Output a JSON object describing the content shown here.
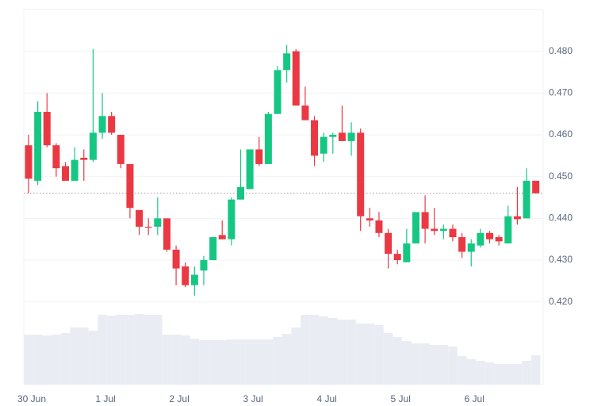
{
  "chart_data": {
    "type": "candlestick",
    "categories": [
      "30 Jun",
      null,
      null,
      null,
      null,
      null,
      null,
      null,
      "1 Jul",
      null,
      null,
      null,
      null,
      null,
      null,
      null,
      "2 Jul",
      null,
      null,
      null,
      null,
      null,
      null,
      null,
      "3 Jul",
      null,
      null,
      null,
      null,
      null,
      null,
      null,
      "4 Jul",
      null,
      null,
      null,
      null,
      null,
      null,
      null,
      "5 Jul",
      null,
      null,
      null,
      null,
      null,
      null,
      null,
      "6 Jul",
      null,
      null,
      null,
      null,
      null,
      null,
      null
    ],
    "open": [
      0.4575,
      0.449,
      0.4655,
      0.4575,
      0.4525,
      0.449,
      0.4545,
      0.454,
      0.4605,
      0.4645,
      0.46,
      0.453,
      0.442,
      0.438,
      0.438,
      0.44,
      0.4325,
      0.4285,
      0.424,
      0.4275,
      0.43,
      0.436,
      0.435,
      0.4445,
      0.447,
      0.4565,
      0.453,
      0.465,
      0.4755,
      0.48,
      0.467,
      0.4635,
      0.4555,
      0.4595,
      0.4605,
      0.4585,
      0.4605,
      0.44,
      0.4395,
      0.4365,
      0.4315,
      0.4295,
      0.434,
      0.4415,
      0.4375,
      0.437,
      0.4375,
      0.4355,
      0.432,
      0.4335,
      0.4365,
      0.4355,
      0.434,
      0.4405,
      0.44,
      0.449
    ],
    "high": [
      0.46,
      0.468,
      0.47,
      0.458,
      0.4535,
      0.457,
      0.4565,
      0.4805,
      0.47,
      0.4655,
      0.46,
      0.453,
      0.442,
      0.44,
      0.445,
      0.44,
      0.4335,
      0.4295,
      0.4285,
      0.431,
      0.4355,
      0.4395,
      0.445,
      0.4565,
      0.4565,
      0.4595,
      0.4655,
      0.4765,
      0.4815,
      0.4805,
      0.4715,
      0.4645,
      0.4605,
      0.4605,
      0.467,
      0.463,
      0.4615,
      0.4425,
      0.4415,
      0.4375,
      0.4325,
      0.4375,
      0.4415,
      0.4455,
      0.4425,
      0.4385,
      0.4385,
      0.4365,
      0.435,
      0.4375,
      0.437,
      0.436,
      0.443,
      0.4475,
      0.452,
      0.449
    ],
    "low": [
      0.446,
      0.448,
      0.457,
      0.45,
      0.449,
      0.449,
      0.449,
      0.4535,
      0.459,
      0.46,
      0.452,
      0.44,
      0.436,
      0.436,
      0.436,
      0.432,
      0.424,
      0.4235,
      0.4215,
      0.424,
      0.43,
      0.435,
      0.4335,
      0.4445,
      0.447,
      0.4525,
      0.453,
      0.465,
      0.4725,
      0.467,
      0.4635,
      0.4525,
      0.4535,
      0.4555,
      0.4585,
      0.455,
      0.437,
      0.438,
      0.4355,
      0.428,
      0.429,
      0.4295,
      0.434,
      0.434,
      0.436,
      0.435,
      0.4345,
      0.4305,
      0.4285,
      0.433,
      0.434,
      0.4335,
      0.434,
      0.4385,
      0.44,
      0.446
    ],
    "close": [
      0.4495,
      0.4655,
      0.4575,
      0.452,
      0.449,
      0.454,
      0.454,
      0.4605,
      0.4645,
      0.4605,
      0.453,
      0.4425,
      0.438,
      0.4378,
      0.44,
      0.4325,
      0.428,
      0.424,
      0.4265,
      0.43,
      0.4355,
      0.435,
      0.4445,
      0.4475,
      0.4565,
      0.453,
      0.465,
      0.4755,
      0.4795,
      0.467,
      0.4635,
      0.455,
      0.4595,
      0.46,
      0.4585,
      0.4605,
      0.4405,
      0.4395,
      0.4365,
      0.4315,
      0.43,
      0.434,
      0.4415,
      0.4375,
      0.437,
      0.4375,
      0.4355,
      0.432,
      0.434,
      0.4365,
      0.435,
      0.4345,
      0.4405,
      0.4398,
      0.449,
      0.446
    ],
    "volume": [
      63,
      63,
      62,
      63,
      65,
      72,
      72,
      68,
      88,
      87,
      88,
      88,
      89,
      88,
      88,
      63,
      63,
      62,
      58,
      56,
      56,
      56,
      57,
      57,
      57,
      57,
      57,
      60,
      64,
      72,
      88,
      88,
      86,
      84,
      82,
      82,
      77,
      77,
      75,
      65,
      60,
      55,
      52,
      52,
      50,
      50,
      48,
      36,
      32,
      30,
      28,
      26,
      26,
      26,
      30,
      37
    ],
    "last_price": 0.446,
    "up_color": "#16c784",
    "down_color": "#ea3943",
    "volume_color": "#e9edf3",
    "ylim": [
      0.4002,
      0.49
    ],
    "yticks": [
      {
        "value": 0.42,
        "label": "0.420"
      },
      {
        "value": 0.43,
        "label": "0.430"
      },
      {
        "value": 0.44,
        "label": "0.440"
      },
      {
        "value": 0.45,
        "label": "0.450"
      },
      {
        "value": 0.46,
        "label": "0.460"
      },
      {
        "value": 0.47,
        "label": "0.470"
      },
      {
        "value": 0.48,
        "label": "0.480"
      }
    ],
    "grid": true
  }
}
